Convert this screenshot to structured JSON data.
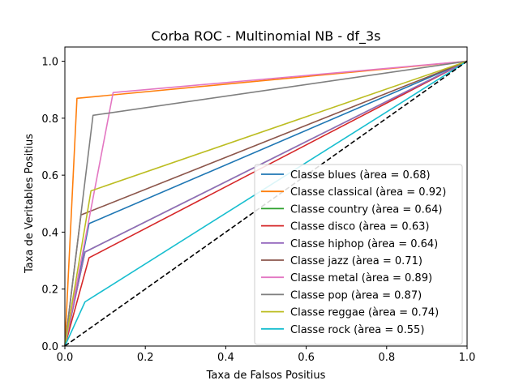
{
  "chart_data": {
    "type": "line",
    "title": "Corba ROC - Multinomial NB - df_3s",
    "xlabel": "Taxa de Falsos Positius",
    "ylabel": "Taxa de Veritables Positius",
    "xlim": [
      0,
      1
    ],
    "ylim": [
      0,
      1.05
    ],
    "x_ticks": [
      "0.0",
      "0.2",
      "0.4",
      "0.6",
      "0.8",
      "1.0"
    ],
    "y_ticks": [
      "0.0",
      "0.2",
      "0.4",
      "0.6",
      "0.8",
      "1.0"
    ],
    "grid": false,
    "legend_position": "lower-right",
    "series": [
      {
        "name": "Classe blues (àrea = 0.68)",
        "color": "#1f77b4",
        "x": [
          0,
          0.06,
          1
        ],
        "y": [
          0,
          0.43,
          1
        ]
      },
      {
        "name": "Classe classical (àrea = 0.92)",
        "color": "#ff7f0e",
        "x": [
          0,
          0.03,
          1
        ],
        "y": [
          0,
          0.87,
          1
        ]
      },
      {
        "name": "Classe country (àrea = 0.64)",
        "color": "#2ca02c",
        "x": [
          0,
          0.05,
          1
        ],
        "y": [
          0,
          0.33,
          1
        ]
      },
      {
        "name": "Classe disco (àrea = 0.63)",
        "color": "#d62728",
        "x": [
          0,
          0.06,
          1
        ],
        "y": [
          0,
          0.31,
          1
        ]
      },
      {
        "name": "Classe hiphop (àrea = 0.64)",
        "color": "#9467bd",
        "x": [
          0,
          0.05,
          1
        ],
        "y": [
          0,
          0.33,
          1
        ]
      },
      {
        "name": "Classe jazz (àrea = 0.71)",
        "color": "#8c564b",
        "x": [
          0,
          0.04,
          1
        ],
        "y": [
          0,
          0.46,
          1
        ]
      },
      {
        "name": "Classe metal (àrea = 0.89)",
        "color": "#e377c2",
        "x": [
          0,
          0.12,
          1
        ],
        "y": [
          0,
          0.89,
          1
        ]
      },
      {
        "name": "Classe pop (àrea = 0.87)",
        "color": "#7f7f7f",
        "x": [
          0,
          0.07,
          1
        ],
        "y": [
          0,
          0.81,
          1
        ]
      },
      {
        "name": "Classe reggae (àrea = 0.74)",
        "color": "#bcbd22",
        "x": [
          0,
          0.065,
          1
        ],
        "y": [
          0,
          0.545,
          1
        ]
      },
      {
        "name": "Classe rock (àrea = 0.55)",
        "color": "#17becf",
        "x": [
          0,
          0.05,
          1
        ],
        "y": [
          0,
          0.155,
          1
        ]
      }
    ],
    "diagonal": {
      "x": [
        0,
        1
      ],
      "y": [
        0,
        1
      ],
      "color": "#000000",
      "style": "dashed"
    }
  }
}
